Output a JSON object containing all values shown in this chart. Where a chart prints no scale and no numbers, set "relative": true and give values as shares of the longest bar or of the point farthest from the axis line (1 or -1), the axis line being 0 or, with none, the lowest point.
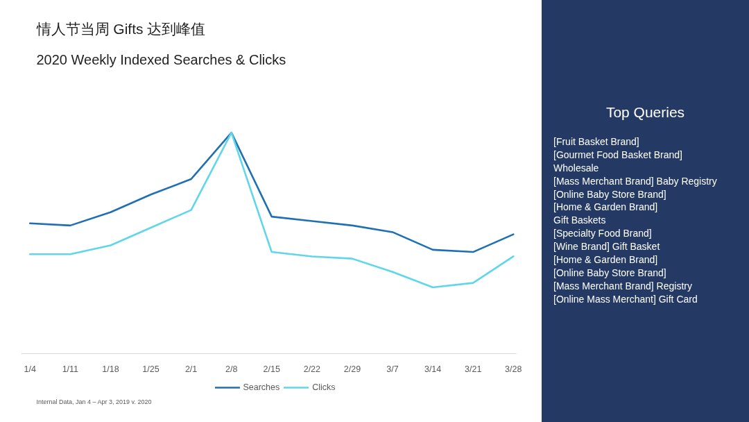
{
  "chart_data": [
    {
      "type": "line",
      "title": "情人节当周 Gifts 达到峰值",
      "subtitle": "2020 Weekly Indexed Searches & Clicks",
      "categories": [
        "1/4",
        "1/11",
        "1/18",
        "1/25",
        "2/1",
        "2/8",
        "2/15",
        "2/22",
        "2/29",
        "3/7",
        "3/14",
        "3/21",
        "3/28"
      ],
      "relative": true,
      "series": [
        {
          "name": "Searches",
          "color": "#1f6fb4",
          "values": [
            0.59,
            0.58,
            0.64,
            0.72,
            0.79,
            1.0,
            0.62,
            0.6,
            0.58,
            0.55,
            0.47,
            0.46,
            0.54
          ]
        },
        {
          "name": "Clicks",
          "color": "#5fd6ea",
          "values": [
            0.45,
            0.45,
            0.49,
            0.57,
            0.65,
            1.0,
            0.46,
            0.44,
            0.43,
            0.37,
            0.3,
            0.32,
            0.44
          ]
        }
      ],
      "legend": "bottom",
      "annotations": [
        "Internal Data, Jan 4 – Apr 3, 2019 v. 2020"
      ]
    },
    {
      "type": "other",
      "title": "Top Queries",
      "annotations": [
        "[Fruit Basket Brand]",
        "[Gourmet Food Basket Brand]",
        "Wholesale",
        "[Mass Merchant Brand] Baby Registry",
        "[Online Baby Store Brand]",
        "[Home & Garden Brand]",
        "Gift Baskets",
        "[Specialty Food Brand]",
        "[Wine Brand] Gift Basket",
        "[Home & Garden Brand]",
        "[Online Baby Store Brand]",
        "[Mass Merchant Brand] Registry",
        "[Online Mass Merchant] Gift Card"
      ]
    }
  ]
}
